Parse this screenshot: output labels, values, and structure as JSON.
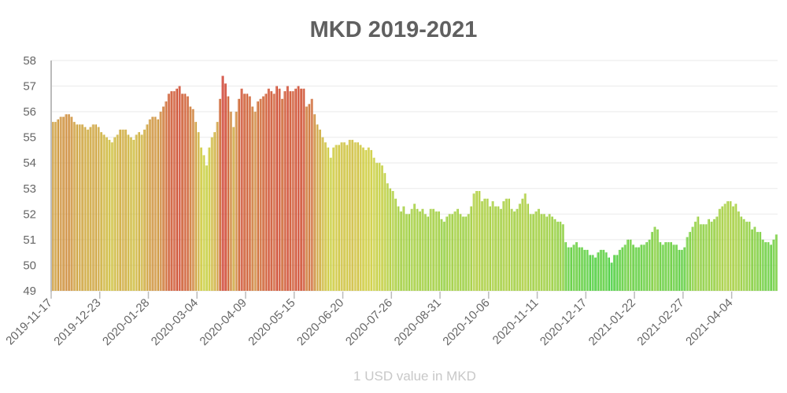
{
  "chart_data": {
    "type": "bar",
    "title": "MKD 2019-2021",
    "xlabel": "1 USD value in MKD",
    "ylabel": "",
    "ylim": [
      49,
      58
    ],
    "yticks": [
      "49",
      "50",
      "51",
      "52",
      "53",
      "54",
      "55",
      "56",
      "57",
      "58"
    ],
    "x_start": "2019-11-17",
    "x_end": "2021-05-08",
    "sample_interval_days": 2,
    "xticks": [
      "2019-11-17",
      "2019-12-23",
      "2020-01-28",
      "2020-03-04",
      "2020-04-09",
      "2020-05-15",
      "2020-06-20",
      "2020-07-26",
      "2020-08-31",
      "2020-10-06",
      "2020-11-11",
      "2020-12-17",
      "2021-01-22",
      "2021-02-27",
      "2021-04-04"
    ],
    "grid": true,
    "legend": "none",
    "color_scale": {
      "low": "#33cc33",
      "mid_low": "#99cc33",
      "mid": "#cccc33",
      "mid_high": "#cc9933",
      "high": "#cc3322"
    },
    "values": [
      55.6,
      55.6,
      55.7,
      55.8,
      55.8,
      55.9,
      55.9,
      55.8,
      55.6,
      55.5,
      55.5,
      55.5,
      55.4,
      55.3,
      55.4,
      55.5,
      55.5,
      55.4,
      55.2,
      55.1,
      55.0,
      54.9,
      54.8,
      55.0,
      55.1,
      55.3,
      55.3,
      55.3,
      55.1,
      55.0,
      54.9,
      55.1,
      55.2,
      55.1,
      55.3,
      55.5,
      55.7,
      55.8,
      55.8,
      55.7,
      56.0,
      56.2,
      56.4,
      56.7,
      56.8,
      56.8,
      56.9,
      57.0,
      56.7,
      56.7,
      56.6,
      56.2,
      56.1,
      55.6,
      55.2,
      54.6,
      54.3,
      53.9,
      54.6,
      55.0,
      55.2,
      55.6,
      56.5,
      57.4,
      57.1,
      56.6,
      56.0,
      55.4,
      56.0,
      56.5,
      56.9,
      56.7,
      56.7,
      56.6,
      56.2,
      56.0,
      56.4,
      56.5,
      56.6,
      56.7,
      56.9,
      56.8,
      56.7,
      57.0,
      56.9,
      56.5,
      56.8,
      57.0,
      56.8,
      56.8,
      56.9,
      57.0,
      56.9,
      56.9,
      56.2,
      56.3,
      56.5,
      55.9,
      55.5,
      55.3,
      55.0,
      54.8,
      54.6,
      54.2,
      54.6,
      54.7,
      54.7,
      54.8,
      54.8,
      54.7,
      54.9,
      54.9,
      54.8,
      54.8,
      54.7,
      54.6,
      54.5,
      54.6,
      54.5,
      54.2,
      54.0,
      54.0,
      53.9,
      53.6,
      53.2,
      53.0,
      52.9,
      52.6,
      52.3,
      52.1,
      52.3,
      52.0,
      52.0,
      52.2,
      52.4,
      52.2,
      52.1,
      52.2,
      52.0,
      51.9,
      52.2,
      52.2,
      52.1,
      52.1,
      51.8,
      51.7,
      51.9,
      52.0,
      52.0,
      52.1,
      52.2,
      52.0,
      51.9,
      51.9,
      52.0,
      52.3,
      52.8,
      52.9,
      52.9,
      52.5,
      52.6,
      52.6,
      52.3,
      52.5,
      52.3,
      52.3,
      52.2,
      52.5,
      52.6,
      52.6,
      52.2,
      52.1,
      52.2,
      52.4,
      52.6,
      52.8,
      52.4,
      52.0,
      52.0,
      52.1,
      52.2,
      52.0,
      52.0,
      51.9,
      52.0,
      51.9,
      51.8,
      51.7,
      51.7,
      51.6,
      50.9,
      50.7,
      50.7,
      50.8,
      50.9,
      50.7,
      50.7,
      50.6,
      50.6,
      50.4,
      50.4,
      50.3,
      50.5,
      50.6,
      50.6,
      50.5,
      50.3,
      50.1,
      50.4,
      50.4,
      50.6,
      50.7,
      50.8,
      51.0,
      51.0,
      50.8,
      50.7,
      50.7,
      50.8,
      50.8,
      50.9,
      51.0,
      51.3,
      51.5,
      51.4,
      50.9,
      50.8,
      50.9,
      50.9,
      50.9,
      50.8,
      50.8,
      50.6,
      50.6,
      50.7,
      51.1,
      51.3,
      51.5,
      51.7,
      51.9,
      51.6,
      51.6,
      51.6,
      51.8,
      51.7,
      51.8,
      51.9,
      52.2,
      52.3,
      52.4,
      52.5,
      52.5,
      52.3,
      52.4,
      52.1,
      51.9,
      51.8,
      51.7,
      51.7,
      51.4,
      51.5,
      51.3,
      51.3,
      51.0,
      50.9,
      50.9,
      50.8,
      51.0,
      51.2
    ]
  }
}
